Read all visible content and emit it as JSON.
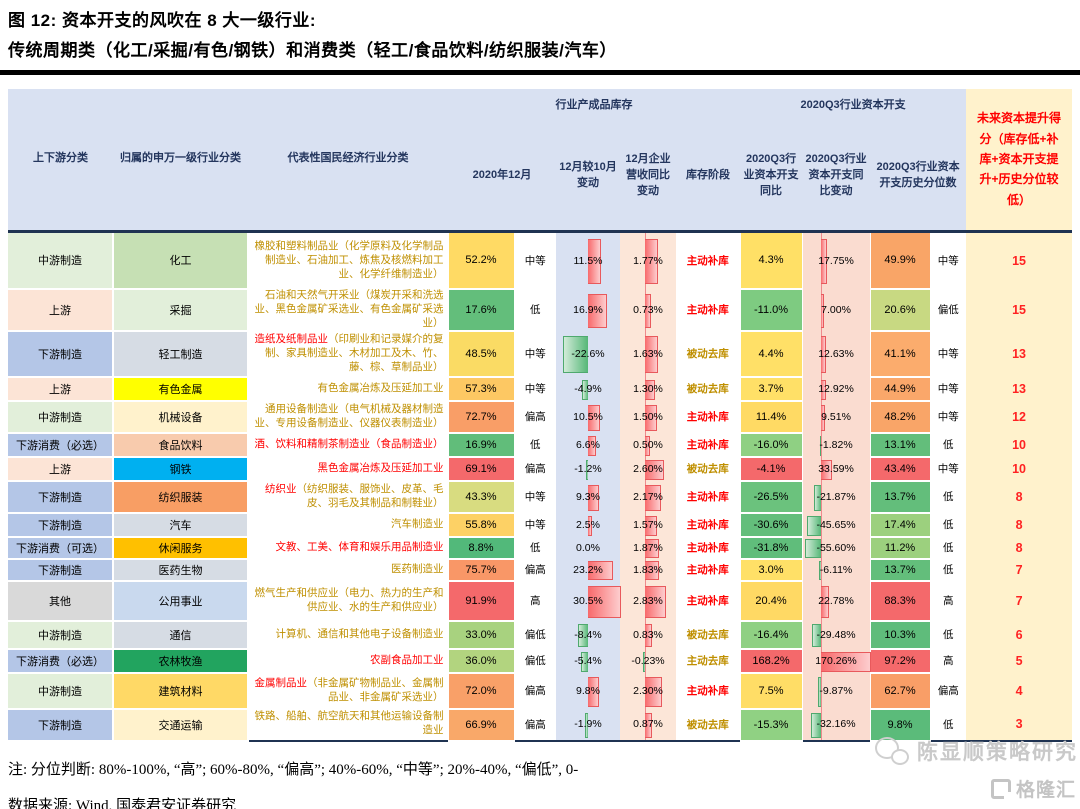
{
  "title": {
    "line1": "图 12:  资本开支的风吹在 8 大一级行业:",
    "line2": "传统周期类（化工/采掘/有色/钢铁）和消费类（轻工/食品饮料/纺织服装/汽车）"
  },
  "header": {
    "col_updown": "上下游分类",
    "col_sw": "归属的申万一级行业分类",
    "col_desc": "代表性国民经济行业分类",
    "group_inventory": "行业产成品库存",
    "group_capex": "2020Q3行业资本开支",
    "col_dec": "2020年12月",
    "col_chg": "12月较10月变动",
    "col_rev": "12月企业营收同比变动",
    "col_stage": "库存阶段",
    "col_capex_yoy": "2020Q3行业资本开支同比",
    "col_capex_chg": "2020Q3行业资本开支同比变动",
    "col_pct": "2020Q3行业资本开支历史分位数",
    "col_score": "未来资本提升得分（库存低+补库+资本开支提升+历史分位较低）"
  },
  "colors": {
    "header_bg": "#D9E1F2",
    "score_bg": "#FFF2CC",
    "accent_red": "#FF0000",
    "olive_text": "#BF8F00",
    "bar_pos": "#F8696B",
    "bar_neg": "#63BE7B"
  },
  "rows": [
    {
      "updown": "中游制造",
      "updown_bg": "#E2EFDA",
      "sw": "化工",
      "sw_bg": "#C6E0B4",
      "head": "橡胶和塑料制品业",
      "head_red": false,
      "tail": "（化学原料及化学制品制造业、石油加工、炼焦及核燃料加工业、化学纤维制造业）",
      "dec": "52.2%",
      "dec_bg": "#FFDA64",
      "dec_level": "中等",
      "chg": 11.5,
      "chg_label": "11.5%",
      "rev": 1.77,
      "rev_label": "1.77%",
      "stage": "主动补库",
      "stage_red": true,
      "yoy": "4.3%",
      "yoy_bg": "#FFE066",
      "cchg": 17.75,
      "cchg_label": "17.75%",
      "pct": "49.9%",
      "pct_bg": "#F9A567",
      "pct_level": "中等",
      "score": "15",
      "h": 58
    },
    {
      "updown": "上游",
      "updown_bg": "#FCE4D6",
      "sw": "采掘",
      "sw_bg": "#E2EFDA",
      "head": "石油和天然气开采业",
      "head_red": false,
      "tail": "（煤炭开采和洗选业、黑色金属矿采选业、有色金属矿采选业）",
      "dec": "17.6%",
      "dec_bg": "#63BE7B",
      "dec_level": "低",
      "chg": 16.9,
      "chg_label": "16.9%",
      "rev": 0.73,
      "rev_label": "0.73%",
      "stage": "主动补库",
      "stage_red": true,
      "yoy": "-11.0%",
      "yoy_bg": "#7ECB81",
      "cchg": 7.0,
      "cchg_label": "7.00%",
      "pct": "20.6%",
      "pct_bg": "#C8D982",
      "pct_level": "偏低",
      "score": "15",
      "h": 40
    },
    {
      "updown": "下游制造",
      "updown_bg": "#B4C6E7",
      "sw": "轻工制造",
      "sw_bg": "#D6DCE4",
      "head": "造纸及纸制品业",
      "head_red": true,
      "tail": "（印刷业和记录媒介的复制、家具制造业、木材加工及木、竹、藤、棕、草制品业）",
      "dec": "48.5%",
      "dec_bg": "#FADB64",
      "dec_level": "中等",
      "chg": -22.6,
      "chg_label": "-22.6%",
      "rev": 1.63,
      "rev_label": "1.63%",
      "stage": "被动去库",
      "stage_red": false,
      "yoy": "4.4%",
      "yoy_bg": "#FFE067",
      "cchg": 12.63,
      "cchg_label": "12.63%",
      "pct": "41.1%",
      "pct_bg": "#FBAC6D",
      "pct_level": "中等",
      "score": "13",
      "h": 46
    },
    {
      "updown": "上游",
      "updown_bg": "#FCE4D6",
      "sw": "有色金属",
      "sw_bg": "#FFFF00",
      "head": "有色金属冶炼及压延加工业",
      "head_red": false,
      "tail": "",
      "dec": "57.3%",
      "dec_bg": "#FDC863",
      "dec_level": "中等",
      "chg": -4.9,
      "chg_label": "-4.9%",
      "rev": 1.3,
      "rev_label": "1.30%",
      "stage": "被动去库",
      "stage_red": false,
      "yoy": "3.7%",
      "yoy_bg": "#FFE067",
      "cchg": 12.92,
      "cchg_label": "12.92%",
      "pct": "44.9%",
      "pct_bg": "#FAA76A",
      "pct_level": "中等",
      "score": "13",
      "h": 24
    },
    {
      "updown": "中游制造",
      "updown_bg": "#E2EFDA",
      "sw": "机械设备",
      "sw_bg": "#FFF2CC",
      "head": "通用设备制造业",
      "head_red": false,
      "tail": "（电气机械及器材制造业、专用设备制造业、仪器仪表制造业）",
      "dec": "72.7%",
      "dec_bg": "#F99E67",
      "dec_level": "偏高",
      "chg": 10.5,
      "chg_label": "10.5%",
      "rev": 1.5,
      "rev_label": "1.50%",
      "stage": "主动补库",
      "stage_red": true,
      "yoy": "11.4%",
      "yoy_bg": "#FFDA64",
      "cchg": 9.51,
      "cchg_label": "9.51%",
      "pct": "48.2%",
      "pct_bg": "#F9A568",
      "pct_level": "中等",
      "score": "12",
      "h": 32
    },
    {
      "updown": "下游消费（必选）",
      "updown_bg": "#B4C6E7",
      "sw": "食品饮料",
      "sw_bg": "#F8CBAD",
      "head": "酒、饮料和精制茶制造业（食品制造业）",
      "head_red": true,
      "tail": "",
      "dec": "16.9%",
      "dec_bg": "#61BD7A",
      "dec_level": "低",
      "chg": 6.6,
      "chg_label": "6.6%",
      "rev": 0.5,
      "rev_label": "0.50%",
      "stage": "主动补库",
      "stage_red": true,
      "yoy": "-16.0%",
      "yoy_bg": "#8FD083",
      "cchg": -1.82,
      "cchg_label": "-1.82%",
      "pct": "13.1%",
      "pct_bg": "#63BE7B",
      "pct_level": "低",
      "score": "10",
      "h": 24
    },
    {
      "updown": "上游",
      "updown_bg": "#FCE4D6",
      "sw": "钢铁",
      "sw_bg": "#00B0F0",
      "head": "黑色金属冶炼及压延加工业",
      "head_red": true,
      "tail": "",
      "dec": "69.1%",
      "dec_bg": "#F4696B",
      "dec_level": "偏高",
      "chg": -1.2,
      "chg_label": "-1.2%",
      "rev": 2.6,
      "rev_label": "2.60%",
      "stage": "被动去库",
      "stage_red": false,
      "yoy": "-4.1%",
      "yoy_bg": "#F4696B",
      "cchg": 33.59,
      "cchg_label": "33.59%",
      "pct": "43.4%",
      "pct_bg": "#F4696B",
      "pct_level": "中等",
      "score": "10",
      "h": 24
    },
    {
      "updown": "下游制造",
      "updown_bg": "#B4C6E7",
      "sw": "纺织服装",
      "sw_bg": "#F89E64",
      "head": "纺织业",
      "head_red": true,
      "tail": "（纺织服装、服饰业、皮革、毛皮、羽毛及其制品和制鞋业）",
      "dec": "43.3%",
      "dec_bg": "#D8DC80",
      "dec_level": "中等",
      "chg": 9.3,
      "chg_label": "9.3%",
      "rev": 2.17,
      "rev_label": "2.17%",
      "stage": "主动补库",
      "stage_red": true,
      "yoy": "-26.5%",
      "yoy_bg": "#6BC27D",
      "cchg": -21.87,
      "cchg_label": "-21.87%",
      "pct": "13.7%",
      "pct_bg": "#63BE7B",
      "pct_level": "低",
      "score": "8",
      "h": 32
    },
    {
      "updown": "下游制造",
      "updown_bg": "#B4C6E7",
      "sw": "汽车",
      "sw_bg": "#D6DCE4",
      "head": "汽车制造业",
      "head_red": false,
      "tail": "",
      "dec": "55.8%",
      "dec_bg": "#FDD165",
      "dec_level": "中等",
      "chg": 2.5,
      "chg_label": "2.5%",
      "rev": 1.57,
      "rev_label": "1.57%",
      "stage": "主动补库",
      "stage_red": true,
      "yoy": "-30.6%",
      "yoy_bg": "#63BE7B",
      "cchg": -45.65,
      "cchg_label": "-45.65%",
      "pct": "17.4%",
      "pct_bg": "#9CD07E",
      "pct_level": "低",
      "score": "8",
      "h": 24
    },
    {
      "updown": "下游消费（可选）",
      "updown_bg": "#B4C6E7",
      "sw": "休闲服务",
      "sw_bg": "#FFC000",
      "head": "文教、工美、体育和娱乐用品制造业",
      "head_red": true,
      "tail": "",
      "dec": "8.8%",
      "dec_bg": "#52B97A",
      "dec_level": "低",
      "chg": 0.0,
      "chg_label": "0.0%",
      "rev": 1.87,
      "rev_label": "1.87%",
      "stage": "主动补库",
      "stage_red": true,
      "yoy": "-31.8%",
      "yoy_bg": "#60BD7B",
      "cchg": -55.6,
      "cchg_label": "-55.60%",
      "pct": "11.2%",
      "pct_bg": "#9CD07E",
      "pct_level": "低",
      "score": "8",
      "h": 22
    },
    {
      "updown": "下游制造",
      "updown_bg": "#B4C6E7",
      "sw": "医药生物",
      "sw_bg": "#D6DCE4",
      "head": "医药制造业",
      "head_red": false,
      "tail": "",
      "dec": "75.7%",
      "dec_bg": "#F99767",
      "dec_level": "偏高",
      "chg": 23.2,
      "chg_label": "23.2%",
      "rev": 1.83,
      "rev_label": "1.83%",
      "stage": "主动补库",
      "stage_red": true,
      "yoy": "3.0%",
      "yoy_bg": "#FFE067",
      "cchg": -6.11,
      "cchg_label": "-6.11%",
      "pct": "13.7%",
      "pct_bg": "#63BE7B",
      "pct_level": "低",
      "score": "7",
      "h": 22
    },
    {
      "updown": "其他",
      "updown_bg": "#D9D9D9",
      "sw": "公用事业",
      "sw_bg": "#C9D9EE",
      "head": "燃气生产和供应业",
      "head_red": false,
      "tail": "（电力、热力的生产和供应业、水的生产和供应业）",
      "dec": "91.9%",
      "dec_bg": "#F4696B",
      "dec_level": "高",
      "chg": 30.5,
      "chg_label": "30.5%",
      "rev": 2.83,
      "rev_label": "2.83%",
      "stage": "主动补库",
      "stage_red": true,
      "yoy": "20.4%",
      "yoy_bg": "#FFD964",
      "cchg": 22.78,
      "cchg_label": "22.78%",
      "pct": "88.3%",
      "pct_bg": "#F4696B",
      "pct_level": "高",
      "score": "7",
      "h": 40
    },
    {
      "updown": "中游制造",
      "updown_bg": "#E2EFDA",
      "sw": "通信",
      "sw_bg": "#D6DCE4",
      "head": "计算机、通信和其他电子设备制造业",
      "head_red": false,
      "tail": "",
      "dec": "33.0%",
      "dec_bg": "#A8D27F",
      "dec_level": "偏低",
      "chg": -8.4,
      "chg_label": "-8.4%",
      "rev": 0.83,
      "rev_label": "0.83%",
      "stage": "被动去库",
      "stage_red": false,
      "yoy": "-16.4%",
      "yoy_bg": "#8FD083",
      "cchg": -29.48,
      "cchg_label": "-29.48%",
      "pct": "10.3%",
      "pct_bg": "#5FBC7B",
      "pct_level": "低",
      "score": "6",
      "h": 28
    },
    {
      "updown": "下游消费（必选）",
      "updown_bg": "#B4C6E7",
      "sw": "农林牧渔",
      "sw_bg": "#22A45F",
      "head": "农副食品加工业",
      "head_red": true,
      "tail": "",
      "dec": "36.0%",
      "dec_bg": "#B2D47F",
      "dec_level": "偏低",
      "chg": -5.4,
      "chg_label": "-5.4%",
      "rev": -0.23,
      "rev_label": "-0.23%",
      "stage": "主动去库",
      "stage_red": false,
      "yoy": "168.2%",
      "yoy_bg": "#F4696B",
      "cchg": 170.26,
      "cchg_label": "170.26%",
      "pct": "97.2%",
      "pct_bg": "#F4696B",
      "pct_level": "高",
      "score": "5",
      "h": 24
    },
    {
      "updown": "中游制造",
      "updown_bg": "#E2EFDA",
      "sw": "建筑材料",
      "sw_bg": "#FFD966",
      "head": "金属制品业",
      "head_red": true,
      "tail": "（非金属矿物制品业、金属制品业、非金属矿采选业）",
      "dec": "72.0%",
      "dec_bg": "#F9A068",
      "dec_level": "偏高",
      "chg": 9.8,
      "chg_label": "9.8%",
      "rev": 2.3,
      "rev_label": "2.30%",
      "stage": "主动补库",
      "stage_red": true,
      "yoy": "7.5%",
      "yoy_bg": "#FFDD66",
      "cchg": -9.87,
      "cchg_label": "-9.87%",
      "pct": "62.7%",
      "pct_bg": "#F99E67",
      "pct_level": "偏高",
      "score": "4",
      "h": 36
    },
    {
      "updown": "下游制造",
      "updown_bg": "#B4C6E7",
      "sw": "交通运输",
      "sw_bg": "#FFF2CC",
      "head": "铁路、船舶、航空航天和其他运输设备制造业",
      "head_red": false,
      "tail": "",
      "dec": "66.9%",
      "dec_bg": "#F9A869",
      "dec_level": "偏高",
      "chg": -1.9,
      "chg_label": "-1.9%",
      "rev": 0.87,
      "rev_label": "0.87%",
      "stage": "被动去库",
      "stage_red": false,
      "yoy": "-15.3%",
      "yoy_bg": "#90D183",
      "cchg": -32.16,
      "cchg_label": "-32.16%",
      "pct": "9.8%",
      "pct_bg": "#5BBB7A",
      "pct_level": "低",
      "score": "3",
      "h": 32
    }
  ],
  "notes": {
    "note1": "注: 分位判断: 80%-100%, “高”; 60%-80%, “偏高”; 40%-60%, “中等”; 20%-40%, “偏低”, 0-",
    "note2": "数据来源: Wind, 国泰君安证券研究",
    "watermark": "陈显顺策略研究",
    "logo": "格隆汇"
  }
}
